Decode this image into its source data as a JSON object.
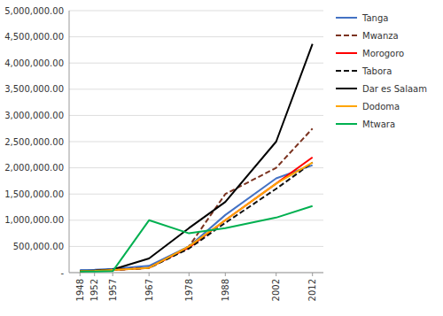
{
  "chart_data": {
    "type": "line",
    "x": [
      1948,
      1952,
      1957,
      1967,
      1978,
      1988,
      2002,
      2012
    ],
    "xlim": [
      1945,
      2015
    ],
    "xticks": [
      1948,
      1952,
      1957,
      1967,
      1978,
      1988,
      2002,
      2012
    ],
    "ylim": [
      0,
      5000000
    ],
    "yticks": [
      {
        "value": 0,
        "label": "-"
      },
      {
        "value": 500000,
        "label": "500,000.00"
      },
      {
        "value": 1000000,
        "label": "1,000,000.00"
      },
      {
        "value": 1500000,
        "label": "1,500,000.00"
      },
      {
        "value": 2000000,
        "label": "2,000,000.00"
      },
      {
        "value": 2500000,
        "label": "2,500,000.00"
      },
      {
        "value": 3000000,
        "label": "3,000,000.00"
      },
      {
        "value": 3500000,
        "label": "3,500,000.00"
      },
      {
        "value": 4000000,
        "label": "4,000,000.00"
      },
      {
        "value": 4500000,
        "label": "4,500,000.00"
      },
      {
        "value": 5000000,
        "label": "5,000,000.00"
      }
    ],
    "grid": true,
    "legend": "right",
    "series": [
      {
        "name": "Tanga",
        "color": "#4472C4",
        "line_style": "solid",
        "values": [
          50000,
          55000,
          70000,
          130000,
          500000,
          1100000,
          1800000,
          2050000
        ]
      },
      {
        "name": "Mwanza",
        "color": "#7B3320",
        "line_style": "dashed",
        "values": [
          30000,
          35000,
          50000,
          90000,
          500000,
          1500000,
          2000000,
          2750000
        ]
      },
      {
        "name": "Morogoro",
        "color": "#FF0000",
        "line_style": "solid",
        "values": [
          30000,
          35000,
          50000,
          90000,
          480000,
          1000000,
          1700000,
          2200000
        ]
      },
      {
        "name": "Tabora",
        "color": "#111111",
        "line_style": "dashed",
        "values": [
          30000,
          35000,
          50000,
          90000,
          460000,
          950000,
          1600000,
          2100000
        ]
      },
      {
        "name": "Dar es Salaam",
        "color": "#000000",
        "line_style": "solid",
        "values": [
          30000,
          40000,
          60000,
          270000,
          850000,
          1350000,
          2500000,
          4365000
        ]
      },
      {
        "name": "Dodoma",
        "color": "#FFA500",
        "line_style": "solid",
        "values": [
          30000,
          35000,
          50000,
          90000,
          500000,
          1000000,
          1700000,
          2100000
        ]
      },
      {
        "name": "Mtwara",
        "color": "#00B050",
        "line_style": "solid",
        "values": [
          20000,
          22000,
          28000,
          1000000,
          750000,
          850000,
          1050000,
          1270000
        ]
      }
    ]
  }
}
